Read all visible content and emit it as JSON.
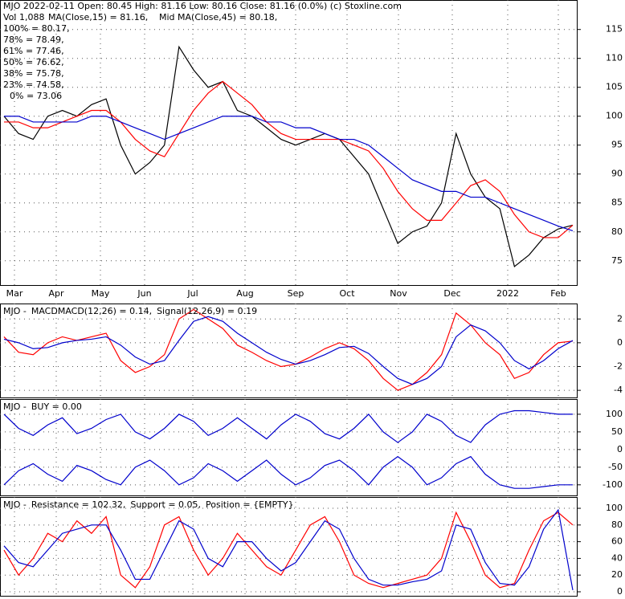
{
  "chart_data": [
    {
      "type": "line",
      "title": "MJO  2022-02-11 Open: 80.45  High: 81.16  Low: 80.16  Close: 81.16 (0.0%)  (c) Stoxline.com",
      "annotations": [
        "Vol 1,088",
        "MA(Close,15) = 81.16,",
        "Mid MA(Close,45) = 80.18,",
        "100% = 80.17,",
        "78% = 78.49,",
        "61% = 77.46,",
        "50% = 76.62,",
        "38% = 75.78,",
        "23% = 74.58,",
        "0% = 73.06"
      ],
      "x_labels": [
        "Mar",
        "Apr",
        "May",
        "Jun",
        "Jul",
        "Aug",
        "Sep",
        "Oct",
        "Nov",
        "Dec",
        "2022",
        "Feb"
      ],
      "ylim": [
        70.8,
        120.1
      ],
      "yticks": [
        75,
        80,
        85,
        90,
        95,
        100,
        105,
        110,
        115
      ],
      "grid": true,
      "series": [
        {
          "color": "#000000",
          "values": [
            100,
            97,
            96,
            100,
            101,
            100,
            102,
            103,
            95,
            90,
            92,
            95,
            112,
            108,
            105,
            106,
            101,
            100,
            98,
            96,
            95,
            96,
            97,
            96,
            93,
            90,
            84,
            78,
            80,
            81,
            85,
            97,
            90,
            86,
            84,
            74,
            76,
            79,
            80.5,
            81.16
          ]
        },
        {
          "color": "#ff0000",
          "values": [
            99,
            99,
            98,
            98,
            99,
            100,
            101,
            101,
            99,
            96,
            94,
            93,
            97,
            101,
            104,
            106,
            104,
            102,
            99,
            97,
            96,
            96,
            96,
            96,
            95,
            94,
            91,
            87,
            84,
            82,
            82,
            85,
            88,
            89,
            87,
            83,
            80,
            79,
            79,
            81.16
          ]
        },
        {
          "color": "#0000cc",
          "values": [
            100,
            100,
            99,
            99,
            99,
            99,
            100,
            100,
            99,
            98,
            97,
            96,
            97,
            98,
            99,
            100,
            100,
            100,
            99,
            99,
            98,
            98,
            97,
            96,
            96,
            95,
            93,
            91,
            89,
            88,
            87,
            87,
            86,
            86,
            85,
            84,
            83,
            82,
            81,
            80.18
          ]
        }
      ]
    },
    {
      "type": "line",
      "title_parts": [
        "MJO - ",
        "MACDMACD(12,26) = 0.14,",
        "Signal(12,26,9) = 0.19"
      ],
      "ylim": [
        -4.6,
        3.3
      ],
      "yticks": [
        2,
        0,
        -2,
        -4
      ],
      "grid": true,
      "series": [
        {
          "color": "#ff0000",
          "values": [
            0.5,
            -0.8,
            -1,
            0,
            0.5,
            0.2,
            0.5,
            0.8,
            -1.5,
            -2.5,
            -2,
            -1,
            2,
            2.8,
            2,
            1.2,
            -0.2,
            -0.8,
            -1.5,
            -2,
            -1.8,
            -1.2,
            -0.5,
            0,
            -0.5,
            -1.5,
            -3,
            -4,
            -3.5,
            -2.5,
            -1,
            2.5,
            1.5,
            0,
            -1,
            -3,
            -2.5,
            -1,
            0,
            0.14
          ]
        },
        {
          "color": "#0000cc",
          "values": [
            0.3,
            0,
            -0.5,
            -0.4,
            0,
            0.2,
            0.3,
            0.5,
            -0.2,
            -1.2,
            -1.8,
            -1.5,
            0.2,
            1.8,
            2.2,
            1.8,
            0.8,
            0,
            -0.8,
            -1.4,
            -1.8,
            -1.5,
            -1,
            -0.4,
            -0.3,
            -0.9,
            -2,
            -3,
            -3.5,
            -3,
            -2,
            0.5,
            1.5,
            1,
            0,
            -1.5,
            -2.2,
            -1.5,
            -0.5,
            0.19
          ]
        }
      ]
    },
    {
      "type": "line",
      "title_parts": [
        "MJO - ",
        "BUY = 0.00"
      ],
      "ylim": [
        -130,
        143
      ],
      "yticks": [
        100,
        50,
        0,
        -50,
        -100
      ],
      "grid": true,
      "series": [
        {
          "color": "#0000cc",
          "values": [
            100,
            60,
            40,
            70,
            90,
            45,
            60,
            85,
            100,
            50,
            30,
            60,
            100,
            80,
            40,
            60,
            90,
            60,
            30,
            70,
            100,
            80,
            45,
            30,
            60,
            100,
            50,
            20,
            50,
            100,
            80,
            40,
            20,
            70,
            100,
            110,
            110,
            105,
            100,
            100
          ]
        },
        {
          "color": "#0000cc",
          "values": [
            -100,
            -60,
            -40,
            -70,
            -90,
            -45,
            -60,
            -85,
            -100,
            -50,
            -30,
            -60,
            -100,
            -80,
            -40,
            -60,
            -90,
            -60,
            -30,
            -70,
            -100,
            -80,
            -45,
            -30,
            -60,
            -100,
            -50,
            -20,
            -50,
            -100,
            -80,
            -40,
            -20,
            -70,
            -100,
            -110,
            -110,
            -105,
            -100,
            -100
          ]
        }
      ]
    },
    {
      "type": "line",
      "title_parts": [
        "MJO - ",
        "Resistance = 102.32,",
        "Support = 0.05,",
        "Position = {EMPTY}"
      ],
      "ylim": [
        -4.8,
        113.5
      ],
      "yticks": [
        100,
        80,
        60,
        40,
        20,
        0
      ],
      "grid": true,
      "series": [
        {
          "color": "#ff0000",
          "values": [
            50,
            20,
            40,
            70,
            60,
            85,
            70,
            90,
            20,
            5,
            30,
            80,
            90,
            50,
            20,
            40,
            70,
            50,
            30,
            20,
            50,
            80,
            90,
            60,
            20,
            10,
            5,
            10,
            15,
            20,
            40,
            95,
            60,
            20,
            5,
            10,
            50,
            85,
            95,
            80
          ]
        },
        {
          "color": "#0000cc",
          "values": [
            55,
            35,
            30,
            50,
            70,
            75,
            80,
            80,
            50,
            15,
            15,
            50,
            85,
            75,
            40,
            30,
            60,
            60,
            40,
            25,
            35,
            60,
            85,
            75,
            40,
            15,
            8,
            8,
            12,
            15,
            25,
            80,
            75,
            35,
            10,
            8,
            30,
            75,
            98,
            2
          ]
        }
      ]
    }
  ]
}
